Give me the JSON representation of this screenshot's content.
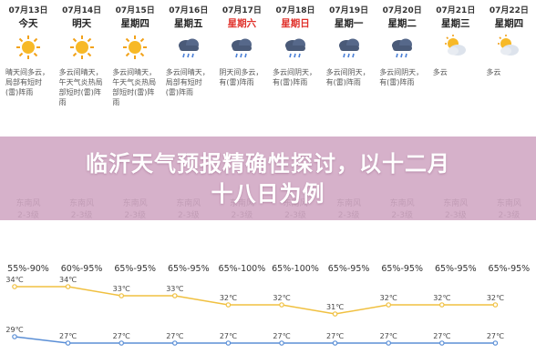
{
  "days": [
    {
      "date": "07月13日",
      "dow": "今天",
      "icon": "sun-icon",
      "desc": "晴天间多云，局部有短时(雷)阵雨",
      "wind": "东南风",
      "level": "2-3级",
      "humidity": "55%-90%",
      "high": 34,
      "low": 29,
      "dow_color": "#222222"
    },
    {
      "date": "07月14日",
      "dow": "明天",
      "icon": "sun-icon",
      "desc": "多云间晴天，午天气炎热局部短时(雷)阵雨",
      "wind": "东南风",
      "level": "2-3级",
      "humidity": "60%-95%",
      "high": 34,
      "low": 27,
      "dow_color": "#222222"
    },
    {
      "date": "07月15日",
      "dow": "星期四",
      "icon": "sun-icon",
      "desc": "多云间晴天，午天气炎热局部短时(雷)阵雨",
      "wind": "东南风",
      "level": "2-3级",
      "humidity": "65%-95%",
      "high": 33,
      "low": 27,
      "dow_color": "#222222"
    },
    {
      "date": "07月16日",
      "dow": "星期五",
      "icon": "cloud-rain-icon",
      "desc": "多云间晴天，局部有短时(雷)阵雨",
      "wind": "东南风",
      "level": "2-3级",
      "humidity": "65%-95%",
      "high": 33,
      "low": 27,
      "dow_color": "#222222"
    },
    {
      "date": "07月17日",
      "dow": "星期六",
      "icon": "cloud-rain-icon",
      "desc": "阴天间多云，有(雷)阵雨",
      "wind": "东南风",
      "level": "2-3级",
      "humidity": "65%-100%",
      "high": 32,
      "low": 27,
      "dow_color": "#e0312b"
    },
    {
      "date": "07月18日",
      "dow": "星期日",
      "icon": "cloud-rain-icon",
      "desc": "多云间阴天，有(雷)阵雨",
      "wind": "东南风",
      "level": "2-3级",
      "humidity": "65%-100%",
      "high": 32,
      "low": 27,
      "dow_color": "#e0312b"
    },
    {
      "date": "07月19日",
      "dow": "星期一",
      "icon": "cloud-rain-icon",
      "desc": "多云间阴天，有(雷)阵雨",
      "wind": "东南风",
      "level": "2-3级",
      "humidity": "65%-95%",
      "high": 31,
      "low": 27,
      "dow_color": "#222222"
    },
    {
      "date": "07月20日",
      "dow": "星期二",
      "icon": "cloud-rain-icon",
      "desc": "多云间阴天，有(雷)阵雨",
      "wind": "东南风",
      "level": "2-3级",
      "humidity": "65%-95%",
      "high": 32,
      "low": 27,
      "dow_color": "#222222"
    },
    {
      "date": "07月21日",
      "dow": "星期三",
      "icon": "partly-cloudy-icon",
      "desc": "多云",
      "wind": "东南风",
      "level": "2-3级",
      "humidity": "65%-95%",
      "high": 32,
      "low": 27,
      "dow_color": "#222222"
    },
    {
      "date": "07月22日",
      "dow": "星期四",
      "icon": "partly-cloudy-icon",
      "desc": "多云",
      "wind": "东南风",
      "level": "2-3级",
      "humidity": "65%-95%",
      "high": 32,
      "low": 27,
      "dow_color": "#222222"
    }
  ],
  "title_line1": "临沂天气预报精确性探讨，以十二月",
  "title_line2": "十八日为例",
  "temp_unit": "℃",
  "colors": {
    "high_line": "#f0c040",
    "low_line": "#5b8fd6",
    "overlay": "#cda0be",
    "weekend": "#e0312b"
  }
}
